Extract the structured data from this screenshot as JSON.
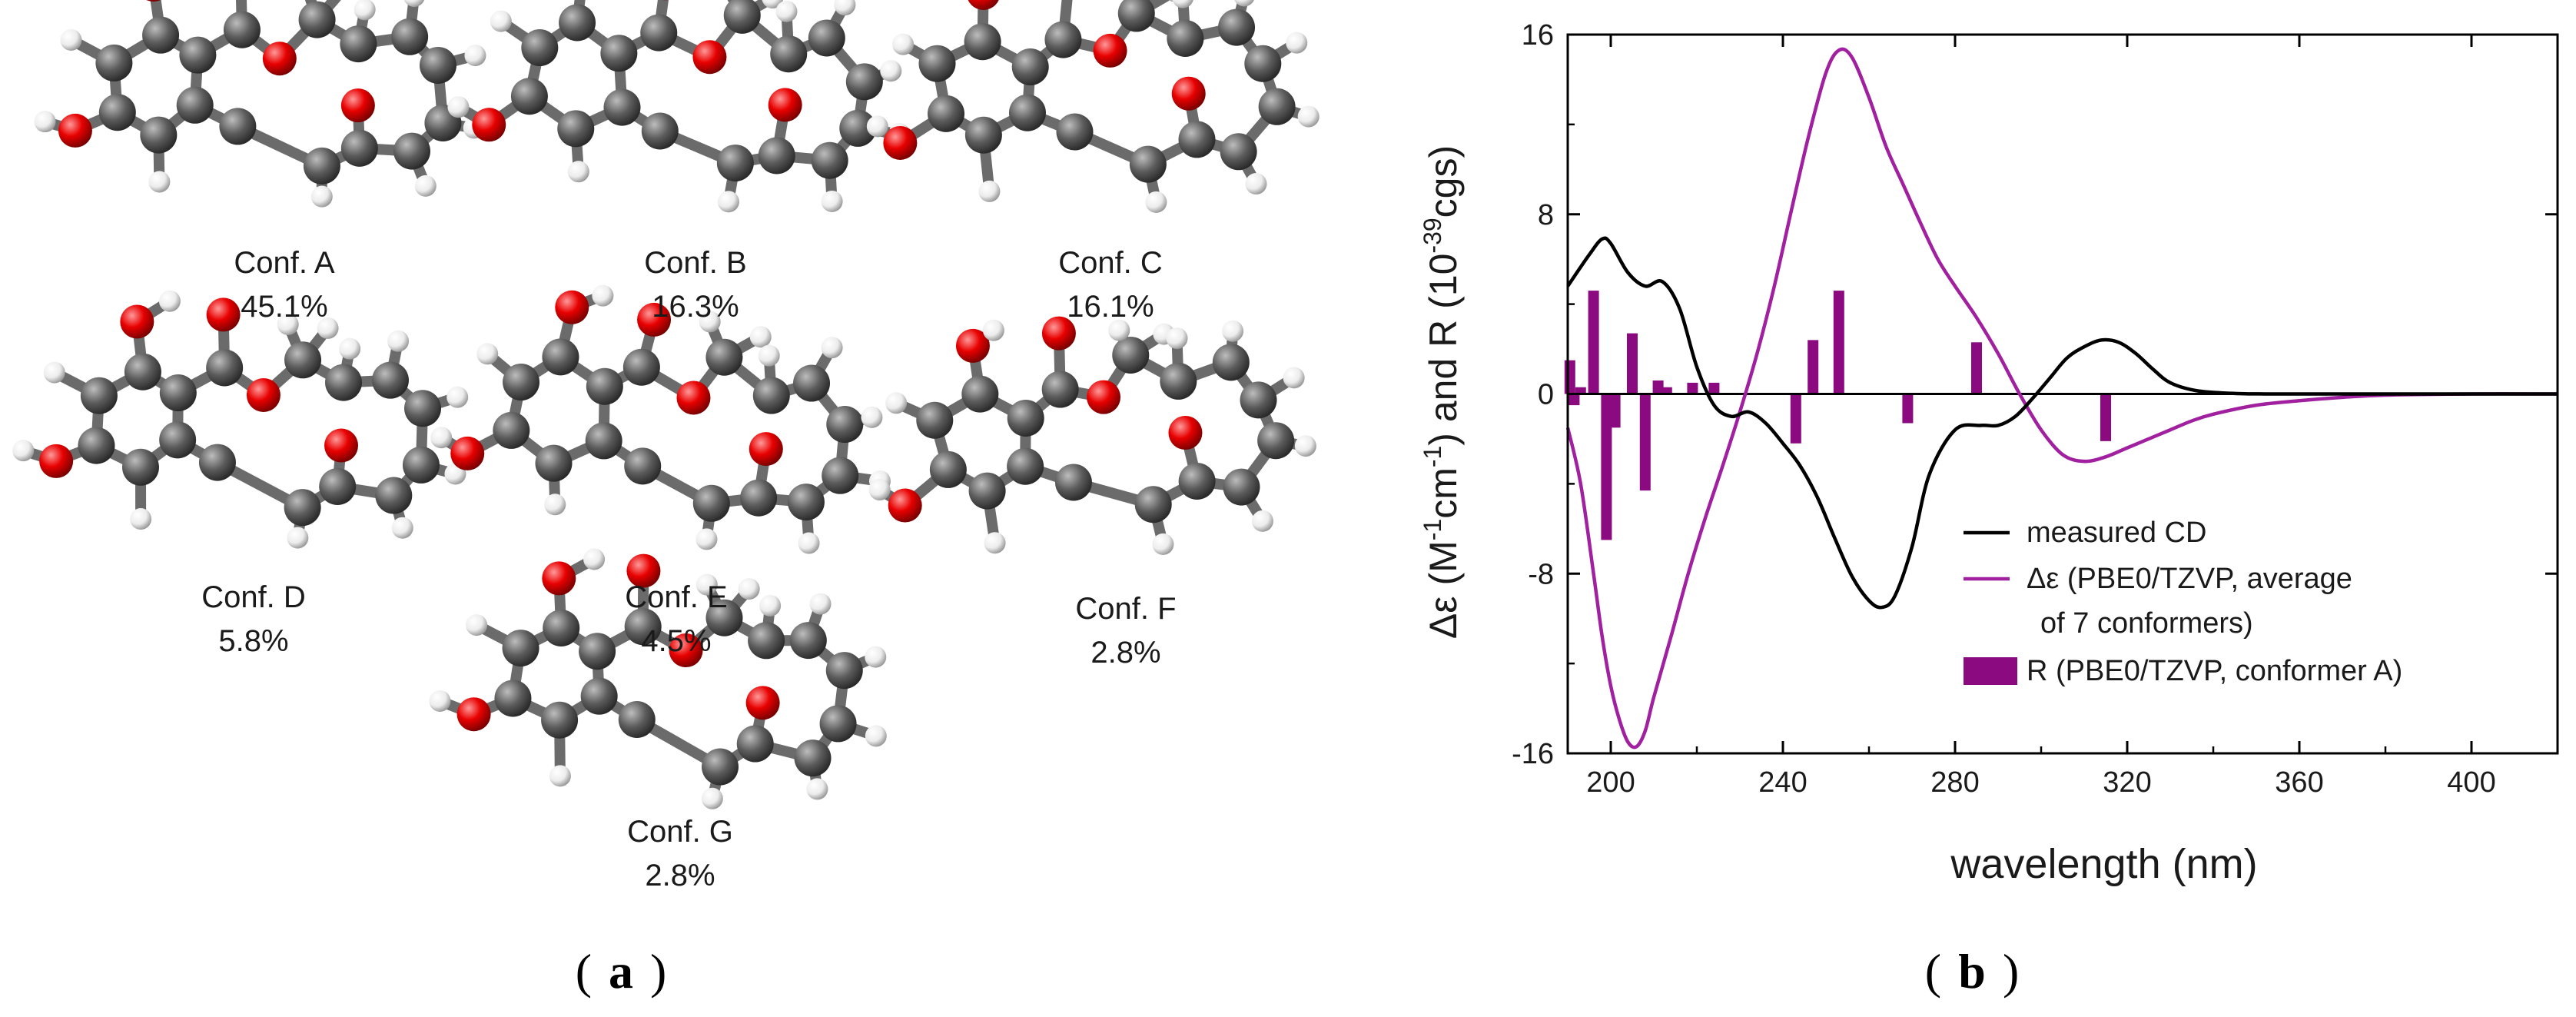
{
  "panel_a": {
    "label": "a",
    "conformers": [
      {
        "name": "Conf. A",
        "population": "45.1%"
      },
      {
        "name": "Conf. B",
        "population": "16.3%"
      },
      {
        "name": "Conf. C",
        "population": "16.1%"
      },
      {
        "name": "Conf. D",
        "population": "5.8%"
      },
      {
        "name": "Conf. E",
        "population": "4.5%"
      },
      {
        "name": "Conf. F",
        "population": "2.8%"
      },
      {
        "name": "Conf. G",
        "population": "2.8%"
      }
    ]
  },
  "panel_b": {
    "label": "b"
  },
  "colors": {
    "carbon": "#5c5c5c",
    "oxygen": "#e80000",
    "hydrogen": "#ececec",
    "bond": "#6b6b6b",
    "measured": "#000000",
    "calculated": "#a020a0",
    "bar": "#8b0a7f"
  },
  "chart_data": {
    "type": "line",
    "xlabel": "wavelength (nm)",
    "ylabel_parts": [
      "Δε (M",
      "-1",
      "cm",
      "-1",
      ") and R (10",
      "-39",
      "cgs)"
    ],
    "xlim": [
      190,
      420
    ],
    "ylim": [
      -16,
      16
    ],
    "xticks": [
      200,
      240,
      280,
      320,
      360,
      400
    ],
    "yticks": [
      -16,
      -8,
      0,
      8,
      16
    ],
    "legend_position": "lower-right",
    "legend": [
      {
        "label": "measured CD",
        "kind": "line"
      },
      {
        "label": "Δε (PBE0/TZVP, average",
        "label2": "of 7 conformers)",
        "kind": "line"
      },
      {
        "label": "R (PBE0/TZVP, conformer A)",
        "kind": "bar"
      }
    ],
    "series": [
      {
        "name": "measured CD",
        "x": [
          190,
          195,
          198,
          200,
          204,
          208,
          212,
          216,
          220,
          224,
          228,
          232,
          236,
          240,
          244,
          248,
          252,
          256,
          260,
          263,
          266,
          270,
          274,
          280,
          286,
          290,
          294,
          298,
          302,
          306,
          310,
          314,
          318,
          322,
          326,
          330,
          336,
          344,
          352,
          360,
          380,
          400,
          420
        ],
        "y": [
          4.8,
          6.2,
          6.9,
          6.7,
          5.4,
          4.8,
          5.0,
          3.8,
          1.2,
          -0.5,
          -1.0,
          -0.8,
          -1.3,
          -2.2,
          -3.2,
          -4.6,
          -6.4,
          -8.1,
          -9.2,
          -9.5,
          -9.0,
          -6.8,
          -3.6,
          -1.6,
          -1.4,
          -1.4,
          -1.0,
          -0.2,
          0.7,
          1.6,
          2.1,
          2.4,
          2.3,
          1.8,
          1.1,
          0.5,
          0.15,
          0.03,
          0.0,
          0.0,
          0.0,
          0.0,
          0.0
        ]
      },
      {
        "name": "Δε (PBE0/TZVP, average of 7 conformers)",
        "x": [
          190,
          193,
          196,
          198,
          200,
          202,
          204,
          206,
          208,
          210,
          214,
          218,
          222,
          226,
          230,
          234,
          238,
          242,
          246,
          250,
          253,
          256,
          260,
          264,
          268,
          272,
          276,
          280,
          285,
          290,
          295,
          300,
          305,
          310,
          315,
          320,
          325,
          330,
          335,
          340,
          350,
          360,
          370,
          380,
          400,
          420
        ],
        "y": [
          -1.5,
          -4.0,
          -8.0,
          -10.8,
          -13.0,
          -14.5,
          -15.5,
          -15.7,
          -15.0,
          -13.5,
          -10.8,
          -8.0,
          -5.5,
          -3.2,
          -0.8,
          1.8,
          4.8,
          8.2,
          11.5,
          14.3,
          15.3,
          15.0,
          13.2,
          11.0,
          9.3,
          7.6,
          6.0,
          4.8,
          3.4,
          1.8,
          0.0,
          -1.6,
          -2.7,
          -3.0,
          -2.8,
          -2.4,
          -2.0,
          -1.6,
          -1.2,
          -0.9,
          -0.5,
          -0.3,
          -0.15,
          -0.05,
          0.0,
          0.0
        ]
      }
    ],
    "bars": {
      "name": "R (PBE0/TZVP, conformer A)",
      "x": [
        190.5,
        191.5,
        193,
        196,
        199,
        201,
        205,
        208,
        211,
        213,
        219,
        224,
        243,
        247,
        253,
        269,
        285,
        315
      ],
      "y": [
        1.5,
        -0.5,
        0.3,
        4.6,
        -6.5,
        -1.5,
        2.7,
        -4.3,
        0.6,
        0.3,
        0.5,
        0.5,
        -2.2,
        2.4,
        4.6,
        -1.3,
        2.3,
        -2.1
      ]
    }
  }
}
